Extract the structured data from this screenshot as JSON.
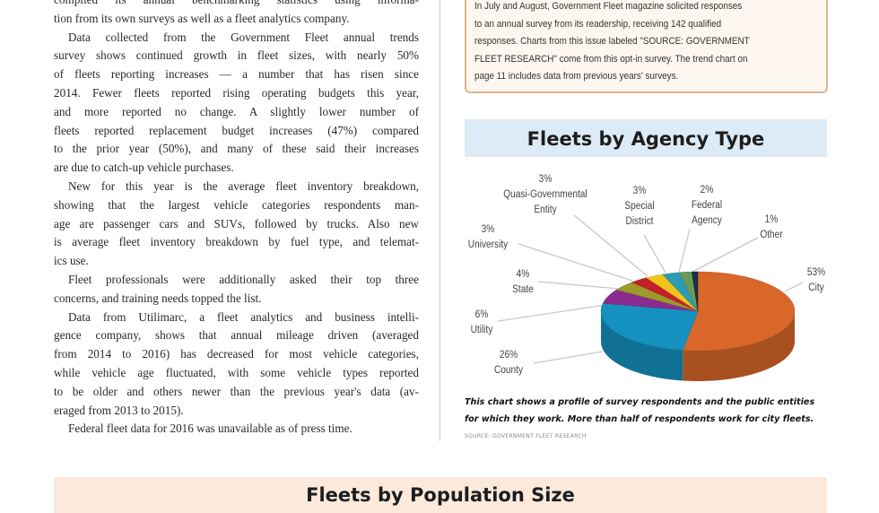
{
  "article": {
    "lines": [
      {
        "t": "compiled its annual benchmarking statistics using informa-"
      },
      {
        "t": "tion from its own surveys as well as a fleet analytics company.",
        "last": true
      },
      {
        "t": "Data collected from the Government Fleet annual trends",
        "ind": true
      },
      {
        "t": "survey shows continued growth in fleet sizes, with nearly 50%"
      },
      {
        "t": "of fleets reporting increases — a number that has risen since"
      },
      {
        "t": "2014. Fewer fleets reported rising operating budgets this year,"
      },
      {
        "t": "and more reported no change. A slightly lower number of"
      },
      {
        "t": "fleets reported replacement budget increases (47%) compared"
      },
      {
        "t": "to the prior year (50%), and many of these said their increases"
      },
      {
        "t": "are due to catch-up vehicle purchases.",
        "last": true
      },
      {
        "t": "New for this year is the average fleet inventory breakdown,",
        "ind": true
      },
      {
        "t": "showing that the largest vehicle categories respondents man-"
      },
      {
        "t": "age are passenger cars and SUVs, followed by trucks. Also new"
      },
      {
        "t": "is average fleet inventory breakdown by fuel type, and telemat-"
      },
      {
        "t": "ics use.",
        "last": true
      },
      {
        "t": "Fleet professionals were additionally asked their top three",
        "ind": true
      },
      {
        "t": "concerns, and training needs topped the list.",
        "last": true
      },
      {
        "t": "Data from Utilimarc, a fleet analytics and business intelli-",
        "ind": true
      },
      {
        "t": "gence company, shows that annual mileage driven (averaged"
      },
      {
        "t": "from 2014 to 2016) has decreased for most vehicle categories,"
      },
      {
        "t": "while vehicle age fluctuated, with some vehicle types reported"
      },
      {
        "t": "to be older and others newer than the previous year's data (av-"
      },
      {
        "t": "eraged from 2013 to 2015).",
        "last": true
      },
      {
        "t": "Federal fleet data for 2016 was unavailable as of press time.",
        "ind": true,
        "last": true
      }
    ]
  },
  "infobox": {
    "lines": [
      "In July and August, Government Fleet magazine solicited responses",
      "to an annual survey from its readership, receiving 142 qualified",
      "responses. Charts from this issue labeled \"SOURCE: GOVERNMENT",
      "FLEET RESEARCH\" come from this opt-in survey. The trend chart on",
      "page 11 includes data from previous years' surveys."
    ]
  },
  "chart_data": {
    "type": "pie",
    "title": "Fleets by Agency Type",
    "slices": [
      {
        "label": "City",
        "value": 53,
        "pct": "53%",
        "color": "#d9672a"
      },
      {
        "label": "County",
        "value": 26,
        "pct": "26%",
        "color": "#1592bf"
      },
      {
        "label": "Utility",
        "value": 6,
        "pct": "6%",
        "color": "#8a2c8e"
      },
      {
        "label": "State",
        "value": 4,
        "pct": "4%",
        "color": "#9c9a2a"
      },
      {
        "label": "University",
        "value": 3,
        "pct": "3%",
        "color": "#c4202a"
      },
      {
        "label": "Quasi-Governmental Entity",
        "value": 3,
        "pct": "3%",
        "color": "#f0c419"
      },
      {
        "label": "Special District",
        "value": 3,
        "pct": "3%",
        "color": "#2f9bb0"
      },
      {
        "label": "Federal Agency",
        "value": 2,
        "pct": "2%",
        "color": "#6a9a5a"
      },
      {
        "label": "Other",
        "value": 1,
        "pct": "1%",
        "color": "#1e2f44"
      }
    ],
    "caption": "This chart shows a profile of survey respondents and the public entities for which they work. More than half of respondents work for city fleets.",
    "source": "SOURCE: GOVERNMENT FLEET RESEARCH"
  },
  "next_section": {
    "title": "Fleets by Population Size"
  }
}
